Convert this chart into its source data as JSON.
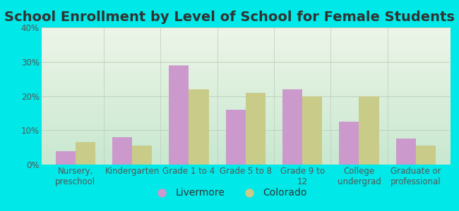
{
  "title": "School Enrollment by Level of School for Female Students",
  "categories": [
    "Nursery,\npreschool",
    "Kindergarten",
    "Grade 1 to 4",
    "Grade 5 to 8",
    "Grade 9 to\n12",
    "College\nundergrad",
    "Graduate or\nprofessional"
  ],
  "livermore": [
    4,
    8,
    29,
    16,
    22,
    12.5,
    7.5
  ],
  "colorado": [
    6.5,
    5.5,
    22,
    21,
    20,
    20,
    5.5
  ],
  "livermore_color": "#cc99cc",
  "colorado_color": "#c8cc88",
  "background_color": "#00e8e8",
  "plot_grad_top": "#edf5e8",
  "plot_grad_bottom": "#c8e8d0",
  "ylim": [
    0,
    40
  ],
  "yticks": [
    0,
    10,
    20,
    30,
    40
  ],
  "bar_width": 0.35,
  "legend_livermore": "Livermore",
  "legend_colorado": "Colorado",
  "title_fontsize": 14,
  "tick_fontsize": 8.5,
  "legend_fontsize": 10
}
